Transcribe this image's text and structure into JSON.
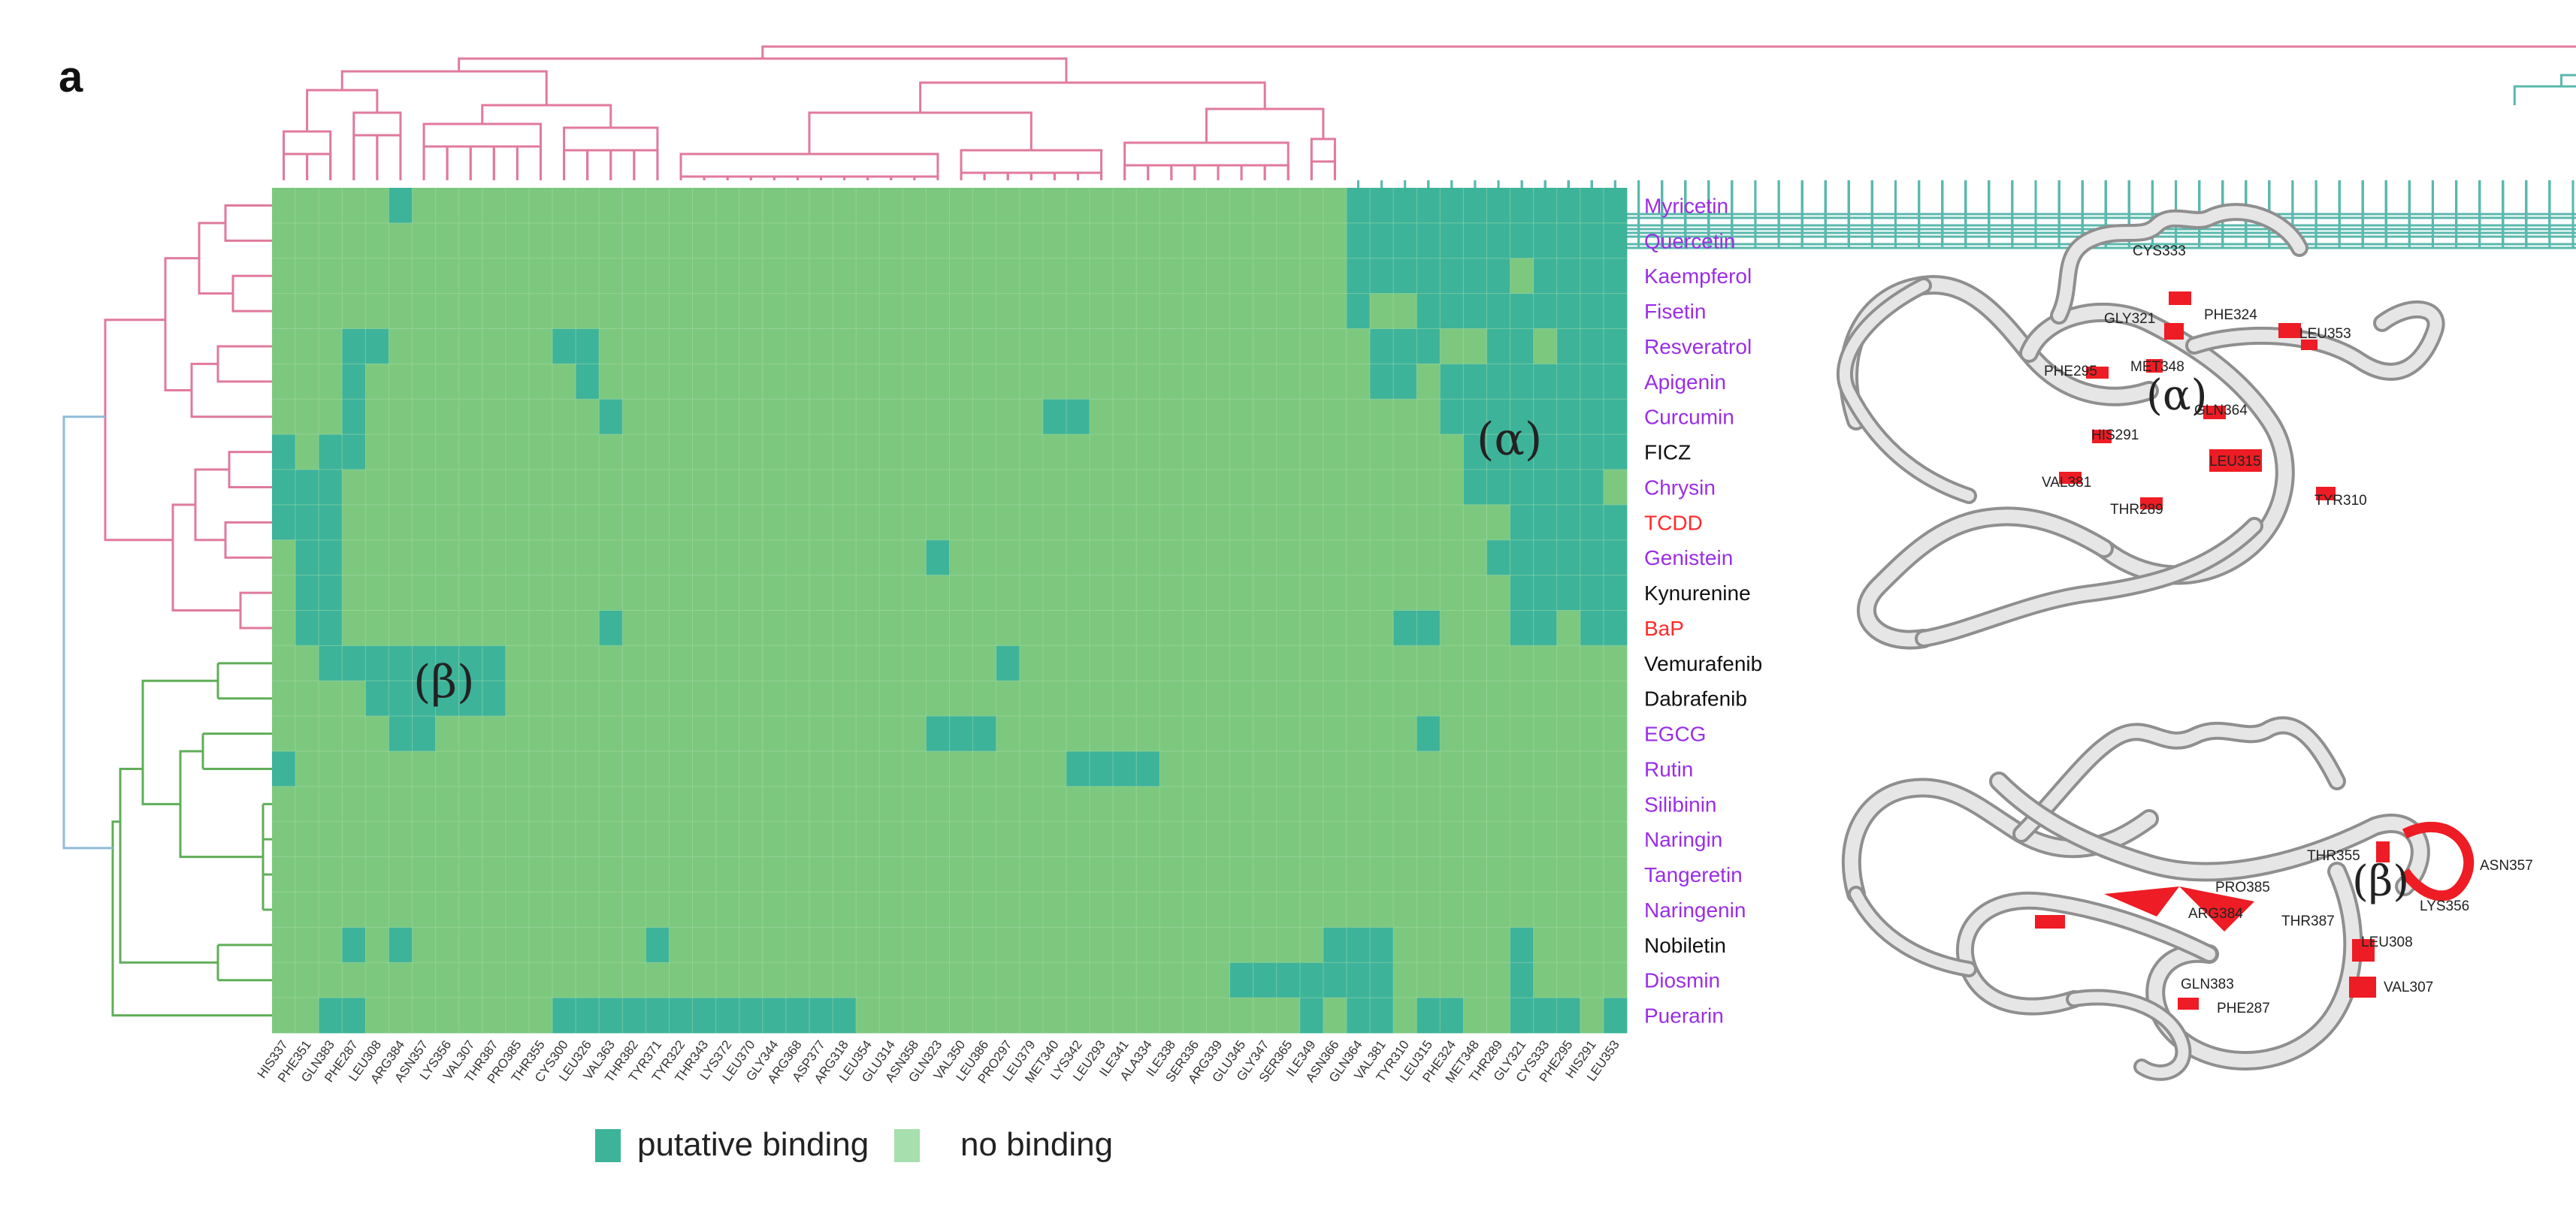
{
  "panel_letter": "a",
  "colors": {
    "binding": "#3db39a",
    "no_binding": "#7dc87f",
    "no_binding_legend": "#a5e0ae",
    "dendro_pink": "#e07a9b",
    "dendro_teal": "#5ab8ad",
    "dendro_green": "#5fae58",
    "dendro_blue": "#8fbcd8",
    "label_purple": "#9a2ee6",
    "label_red": "#ff2a2a",
    "label_black": "#111111",
    "ribbon_red": "#ee1c24"
  },
  "legend": {
    "binding_label": "putative binding",
    "no_binding_label": "no binding"
  },
  "region_labels": {
    "alpha": "(α)",
    "beta": "(β)"
  },
  "chart_data": {
    "type": "heatmap",
    "title": "",
    "values_legend": {
      "1": "putative binding",
      "0": "no binding"
    },
    "columns": [
      "HIS337",
      "PHE351",
      "GLN383",
      "PHE287",
      "LEU308",
      "ARG384",
      "ASN357",
      "LYS356",
      "VAL307",
      "THR387",
      "PRO385",
      "THR355",
      "CYS300",
      "LEU326",
      "VAL363",
      "THR382",
      "TYR371",
      "TYR322",
      "THR343",
      "LYS372",
      "LEU370",
      "GLY344",
      "ARG368",
      "ASP377",
      "ARG318",
      "LEU354",
      "GLU314",
      "ASN358",
      "GLN323",
      "VAL350",
      "LEU386",
      "PRO297",
      "LEU379",
      "MET340",
      "LYS342",
      "LEU293",
      "ILE341",
      "ALA334",
      "ILE338",
      "SER336",
      "ARG339",
      "GLU345",
      "GLY347",
      "SER365",
      "ILE349",
      "ASN366",
      "GLN364",
      "VAL381",
      "TYR310",
      "LEU315",
      "PHE324",
      "MET348",
      "THR289",
      "GLY321",
      "CYS333",
      "PHE295",
      "HIS291",
      "LEU353"
    ],
    "rows": [
      {
        "name": "Myricetin",
        "class": "purple",
        "binding": "0000010000000000000000000000000000000000000000111111111111"
      },
      {
        "name": "Quercetin",
        "class": "purple",
        "binding": "0000000000000000000000000000000000000000000000111111111111"
      },
      {
        "name": "Kaempferol",
        "class": "purple",
        "binding": "0000000000000000000000000000000000000000000000111111101111"
      },
      {
        "name": "Fisetin",
        "class": "purple",
        "binding": "0000000000000000000000000000000000000000000000100111111111"
      },
      {
        "name": "Resveratrol",
        "class": "purple",
        "binding": "0001100000001100000000000000000000000000000000011100110111"
      },
      {
        "name": "Apigenin",
        "class": "purple",
        "binding": "0001000000000100000000000000000000000000000000011011111111"
      },
      {
        "name": "Curcumin",
        "class": "purple",
        "binding": "0001000000000010000000000000000001100000000000000011111111"
      },
      {
        "name": "FICZ",
        "class": "black",
        "binding": "1011000000000000000000000000000000000000000000000001111111"
      },
      {
        "name": "Chrysin",
        "class": "purple",
        "binding": "1110000000000000000000000000000000000000000000000001111110"
      },
      {
        "name": "TCDD",
        "class": "red",
        "binding": "1110000000000000000000000000000000000000000000000000011111"
      },
      {
        "name": "Genistein",
        "class": "purple",
        "binding": "0110000000000000000000000000100000000000000000000000111111"
      },
      {
        "name": "Kynurenine",
        "class": "black",
        "binding": "0110000000000000000000000000000000000000000000000000011111"
      },
      {
        "name": "BaP",
        "class": "red",
        "binding": "0110000000000010000000000000000000000000000000001100011011"
      },
      {
        "name": "Vemurafenib",
        "class": "black",
        "binding": "0011111111000000000000000000000100000000000000000000000000"
      },
      {
        "name": "Dabrafenib",
        "class": "black",
        "binding": "0000111111000000000000000000000000000000000000000000000000"
      },
      {
        "name": "EGCG",
        "class": "purple",
        "binding": "0000011000000000000000000000111000000000000000000100000000"
      },
      {
        "name": "Rutin",
        "class": "purple",
        "binding": "1000000000000000000000000000000000111100000000000000000000"
      },
      {
        "name": "Silibinin",
        "class": "purple",
        "binding": "0000000000000000000000000000000000000000000000000000000000"
      },
      {
        "name": "Naringin",
        "class": "purple",
        "binding": "0000000000000000000000000000000000000000000000000000000000"
      },
      {
        "name": "Tangeretin",
        "class": "purple",
        "binding": "0000000000000000000000000000000000000000000000000000000000"
      },
      {
        "name": "Naringenin",
        "class": "purple",
        "binding": "0000000000000000000000000000000000000000000000000000000000"
      },
      {
        "name": "Nobiletin",
        "class": "black",
        "binding": "0001010000000000100000000000000000000000000001110000010000"
      },
      {
        "name": "Diosmin",
        "class": "purple",
        "binding": "0000000000000000000000000000000000000000011111110000010000"
      },
      {
        "name": "Puerarin",
        "class": "purple",
        "binding": "0011000000001111111111111000000000000000000010110110011101"
      }
    ]
  },
  "protein_top": {
    "residues": [
      "CYS333",
      "GLY321",
      "PHE324",
      "LEU353",
      "MET348",
      "PHE295",
      "GLN364",
      "HIS291",
      "LEU315",
      "VAL381",
      "THR289",
      "TYR310"
    ],
    "region": "(α)"
  },
  "protein_bottom": {
    "residues": [
      "THR355",
      "ASN357",
      "PRO385",
      "LYS356",
      "ARG384",
      "THR387",
      "LEU308",
      "GLN383",
      "VAL307",
      "PHE287"
    ],
    "region": "(β)"
  }
}
